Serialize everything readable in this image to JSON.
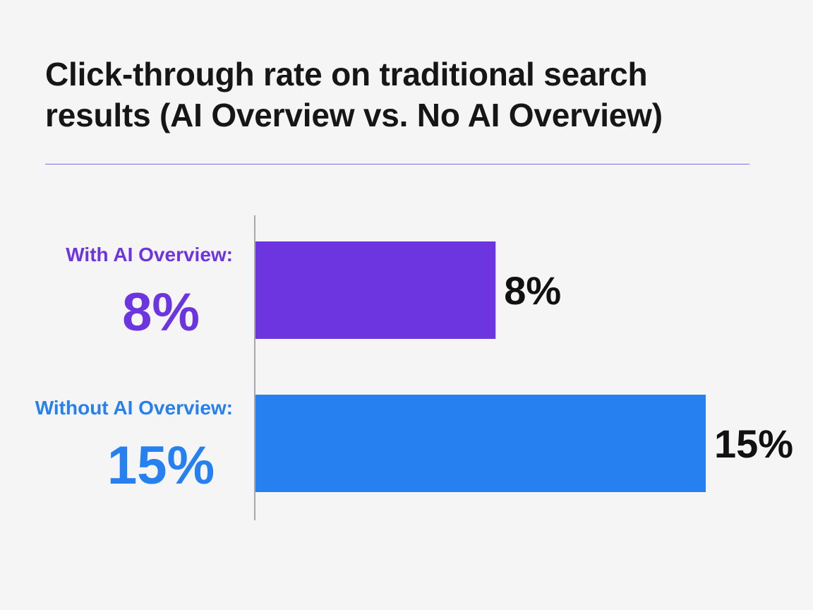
{
  "chart_data": {
    "type": "bar",
    "orientation": "horizontal",
    "title_lines": [
      "Click-through rate on traditional search",
      "results (AI Overview vs. No AI Overview)"
    ],
    "categories": [
      "With AI Overview:",
      "Without AI Overview:"
    ],
    "values": [
      8,
      15
    ],
    "value_labels": [
      "8%",
      "15%"
    ],
    "colors": [
      "#6c35e0",
      "#2680f0"
    ],
    "xlim": [
      0,
      15
    ],
    "grid": false,
    "legend": "none"
  },
  "style": {
    "divider_color": "#8b6be6",
    "axis_color": "#a8a8a8",
    "value_text_color": "#111111"
  }
}
